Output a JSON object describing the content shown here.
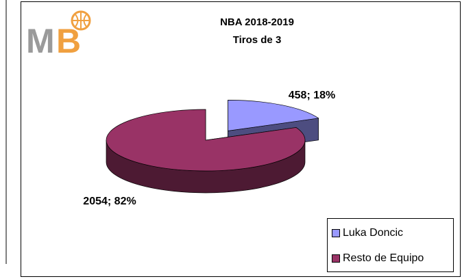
{
  "logo": [
    "M",
    "B"
  ],
  "chart_data": {
    "type": "pie3d",
    "title": [
      "NBA 2018-2019",
      "Tiros de 3"
    ],
    "categories": [
      "Luka Doncic",
      "Resto de Equipo"
    ],
    "values": [
      458,
      2054
    ],
    "value_labels": [
      "458; 18%",
      "2054; 82%"
    ],
    "colors": [
      "#9999ff",
      "#993366"
    ],
    "side_colors": [
      "#4d4d80",
      "#4d1a33"
    ],
    "exploded": [
      true,
      false
    ],
    "legend": "bottom-right"
  }
}
